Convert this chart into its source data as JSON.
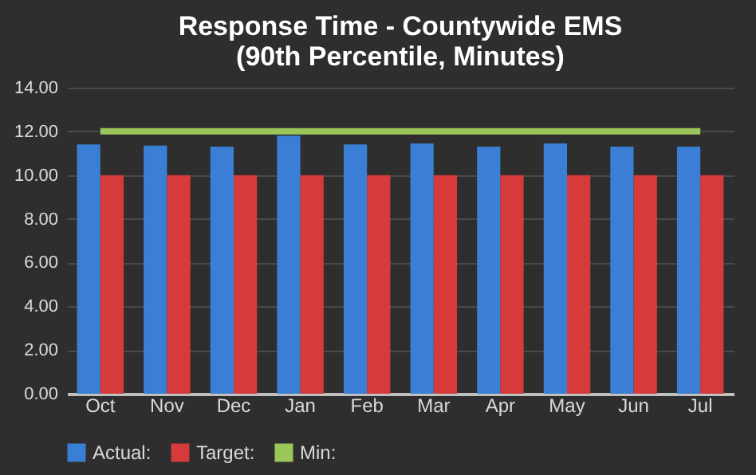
{
  "chart_data": {
    "type": "bar",
    "title": "Response Time - Countywide EMS\n(90th Percentile, Minutes)",
    "categories": [
      "Oct",
      "Nov",
      "Dec",
      "Jan",
      "Feb",
      "Mar",
      "Apr",
      "May",
      "Jun",
      "Jul"
    ],
    "series": [
      {
        "name": "Actual:",
        "color": "#3a7fd5",
        "values": [
          11.4,
          11.35,
          11.3,
          11.8,
          11.4,
          11.45,
          11.3,
          11.45,
          11.3,
          11.3
        ]
      },
      {
        "name": "Target:",
        "color": "#d63a3a",
        "values": [
          10,
          10,
          10,
          10,
          10,
          10,
          10,
          10,
          10,
          10
        ]
      },
      {
        "name": "Min:",
        "color": "#9bc75a",
        "type": "line",
        "values": [
          12,
          12,
          12,
          12,
          12,
          12,
          12,
          12,
          12,
          12
        ]
      }
    ],
    "ylim": [
      0,
      14
    ],
    "yticks": [
      {
        "value": 0,
        "label": "0.00"
      },
      {
        "value": 2,
        "label": "2.00"
      },
      {
        "value": 4,
        "label": "4.00"
      },
      {
        "value": 6,
        "label": "6.00"
      },
      {
        "value": 8,
        "label": "8.00"
      },
      {
        "value": 10,
        "label": "10.00"
      },
      {
        "value": 12,
        "label": "12.00"
      },
      {
        "value": 14,
        "label": "14.00"
      }
    ],
    "grid": "y",
    "legend": "bottom"
  }
}
